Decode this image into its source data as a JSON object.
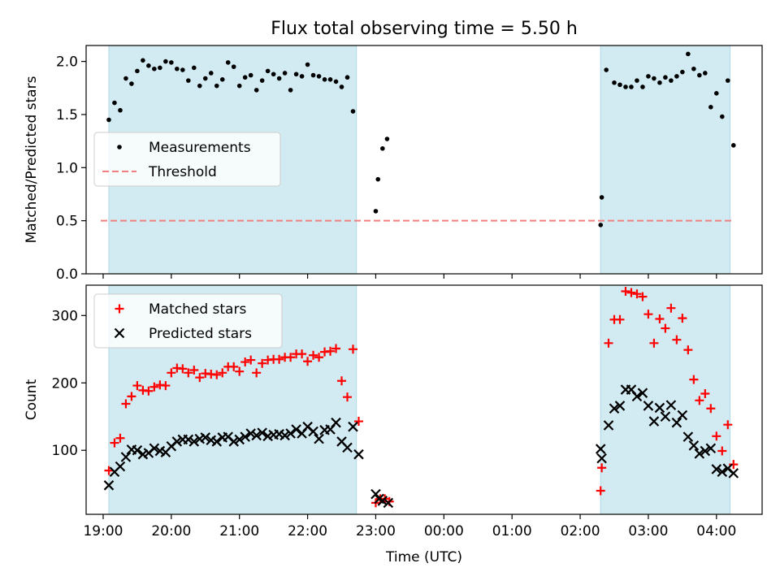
{
  "chart_data": {
    "type": "scatter",
    "title": "Flux total observing time = 5.50 h",
    "xlabel": "Time (UTC)",
    "x_ticks": [
      "19:00",
      "20:00",
      "21:00",
      "22:00",
      "23:00",
      "00:00",
      "01:00",
      "02:00",
      "03:00",
      "04:00"
    ],
    "x_range_hours": [
      18.75,
      28.67
    ],
    "colors": {
      "observing_band": "#add8e6",
      "measurements": "#000000",
      "threshold": "#f08080",
      "matched": "#ff0000",
      "predicted": "#000000"
    },
    "observing_periods": [
      {
        "start": "19:05",
        "end": "22:43"
      },
      {
        "start": "02:18",
        "end": "04:12"
      }
    ],
    "panels": [
      {
        "ylabel": "Matched/Predicted stars",
        "ylim": [
          0,
          2.15
        ],
        "y_ticks": [
          "0.0",
          "0.5",
          "1.0",
          "1.5",
          "2.0"
        ],
        "legend": {
          "position": "center-left",
          "entries": [
            "Measurements",
            "Threshold"
          ]
        },
        "threshold": 0.5,
        "series": [
          {
            "name": "Measurements",
            "marker": "dot",
            "points": [
              [
                "19:05",
                1.45
              ],
              [
                "19:10",
                1.61
              ],
              [
                "19:15",
                1.54
              ],
              [
                "19:20",
                1.84
              ],
              [
                "19:25",
                1.79
              ],
              [
                "19:30",
                1.91
              ],
              [
                "19:35",
                2.01
              ],
              [
                "19:40",
                1.96
              ],
              [
                "19:45",
                1.93
              ],
              [
                "19:50",
                1.94
              ],
              [
                "19:55",
                2.0
              ],
              [
                "20:00",
                1.99
              ],
              [
                "20:05",
                1.93
              ],
              [
                "20:10",
                1.92
              ],
              [
                "20:15",
                1.82
              ],
              [
                "20:20",
                1.94
              ],
              [
                "20:25",
                1.77
              ],
              [
                "20:30",
                1.84
              ],
              [
                "20:35",
                1.89
              ],
              [
                "20:40",
                1.77
              ],
              [
                "20:45",
                1.83
              ],
              [
                "20:50",
                1.99
              ],
              [
                "20:55",
                1.95
              ],
              [
                "21:00",
                1.77
              ],
              [
                "21:05",
                1.85
              ],
              [
                "21:10",
                1.87
              ],
              [
                "21:15",
                1.73
              ],
              [
                "21:20",
                1.82
              ],
              [
                "21:25",
                1.91
              ],
              [
                "21:30",
                1.88
              ],
              [
                "21:35",
                1.84
              ],
              [
                "21:40",
                1.89
              ],
              [
                "21:45",
                1.73
              ],
              [
                "21:50",
                1.88
              ],
              [
                "21:55",
                1.86
              ],
              [
                "22:00",
                1.97
              ],
              [
                "22:05",
                1.87
              ],
              [
                "22:10",
                1.86
              ],
              [
                "22:15",
                1.83
              ],
              [
                "22:20",
                1.83
              ],
              [
                "22:25",
                1.81
              ],
              [
                "22:30",
                1.76
              ],
              [
                "22:35",
                1.85
              ],
              [
                "22:40",
                1.53
              ],
              [
                "23:00",
                0.59
              ],
              [
                "23:02",
                0.89
              ],
              [
                "23:06",
                1.18
              ],
              [
                "23:10",
                1.27
              ],
              [
                "02:18",
                0.46
              ],
              [
                "02:19",
                0.72
              ],
              [
                "02:23",
                1.92
              ],
              [
                "02:30",
                1.8
              ],
              [
                "02:35",
                1.78
              ],
              [
                "02:40",
                1.76
              ],
              [
                "02:45",
                1.76
              ],
              [
                "02:50",
                1.82
              ],
              [
                "02:55",
                1.76
              ],
              [
                "03:00",
                1.86
              ],
              [
                "03:05",
                1.84
              ],
              [
                "03:10",
                1.8
              ],
              [
                "03:15",
                1.85
              ],
              [
                "03:20",
                1.82
              ],
              [
                "03:25",
                1.86
              ],
              [
                "03:30",
                1.9
              ],
              [
                "03:35",
                2.07
              ],
              [
                "03:40",
                1.93
              ],
              [
                "03:45",
                1.87
              ],
              [
                "03:50",
                1.89
              ],
              [
                "03:55",
                1.57
              ],
              [
                "04:00",
                1.7
              ],
              [
                "04:05",
                1.48
              ],
              [
                "04:10",
                1.82
              ],
              [
                "04:15",
                1.21
              ]
            ]
          }
        ]
      },
      {
        "ylabel": "Count",
        "ylim": [
          5,
          345
        ],
        "y_ticks": [
          "100",
          "200",
          "300"
        ],
        "legend": {
          "position": "top-left",
          "entries": [
            "Matched stars",
            "Predicted stars"
          ]
        },
        "series": [
          {
            "name": "Matched stars",
            "marker": "plus",
            "points": [
              [
                "19:05",
                70
              ],
              [
                "19:10",
                111
              ],
              [
                "19:15",
                118
              ],
              [
                "19:20",
                169
              ],
              [
                "19:25",
                180
              ],
              [
                "19:30",
                196
              ],
              [
                "19:35",
                189
              ],
              [
                "19:40",
                188
              ],
              [
                "19:45",
                194
              ],
              [
                "19:50",
                197
              ],
              [
                "19:55",
                196
              ],
              [
                "20:00",
                215
              ],
              [
                "20:05",
                222
              ],
              [
                "20:10",
                221
              ],
              [
                "20:15",
                215
              ],
              [
                "20:20",
                219
              ],
              [
                "20:25",
                208
              ],
              [
                "20:30",
                214
              ],
              [
                "20:35",
                213
              ],
              [
                "20:40",
                212
              ],
              [
                "20:45",
                215
              ],
              [
                "20:50",
                224
              ],
              [
                "20:55",
                224
              ],
              [
                "21:00",
                217
              ],
              [
                "21:05",
                231
              ],
              [
                "21:10",
                234
              ],
              [
                "21:15",
                215
              ],
              [
                "21:20",
                229
              ],
              [
                "21:25",
                234
              ],
              [
                "21:30",
                235
              ],
              [
                "21:35",
                235
              ],
              [
                "21:40",
                238
              ],
              [
                "21:45",
                238
              ],
              [
                "21:50",
                243
              ],
              [
                "21:55",
                243
              ],
              [
                "22:00",
                232
              ],
              [
                "22:05",
                241
              ],
              [
                "22:10",
                238
              ],
              [
                "22:15",
                246
              ],
              [
                "22:20",
                247
              ],
              [
                "22:25",
                251
              ],
              [
                "22:30",
                203
              ],
              [
                "22:35",
                179
              ],
              [
                "22:40",
                250
              ],
              [
                "22:45",
                143
              ],
              [
                "23:00",
                22
              ],
              [
                "23:04",
                28
              ],
              [
                "23:08",
                28
              ],
              [
                "23:12",
                24
              ],
              [
                "02:18",
                40
              ],
              [
                "02:19",
                74
              ],
              [
                "02:25",
                259
              ],
              [
                "02:30",
                294
              ],
              [
                "02:35",
                294
              ],
              [
                "02:40",
                336
              ],
              [
                "02:45",
                334
              ],
              [
                "02:50",
                332
              ],
              [
                "02:55",
                328
              ],
              [
                "03:00",
                302
              ],
              [
                "03:05",
                259
              ],
              [
                "03:10",
                295
              ],
              [
                "03:15",
                281
              ],
              [
                "03:20",
                311
              ],
              [
                "03:25",
                264
              ],
              [
                "03:30",
                296
              ],
              [
                "03:35",
                249
              ],
              [
                "03:40",
                205
              ],
              [
                "03:45",
                174
              ],
              [
                "03:50",
                184
              ],
              [
                "03:55",
                162
              ],
              [
                "04:00",
                121
              ],
              [
                "04:05",
                99
              ],
              [
                "04:10",
                138
              ],
              [
                "04:15",
                79
              ]
            ]
          },
          {
            "name": "Predicted stars",
            "marker": "x",
            "points": [
              [
                "19:05",
                48
              ],
              [
                "19:10",
                68
              ],
              [
                "19:15",
                76
              ],
              [
                "19:20",
                90
              ],
              [
                "19:25",
                101
              ],
              [
                "19:30",
                100
              ],
              [
                "19:35",
                94
              ],
              [
                "19:40",
                96
              ],
              [
                "19:45",
                103
              ],
              [
                "19:50",
                99
              ],
              [
                "19:55",
                97
              ],
              [
                "20:00",
                106
              ],
              [
                "20:05",
                113
              ],
              [
                "20:10",
                116
              ],
              [
                "20:15",
                116
              ],
              [
                "20:20",
                113
              ],
              [
                "20:25",
                117
              ],
              [
                "20:30",
                119
              ],
              [
                "20:35",
                115
              ],
              [
                "20:40",
                113
              ],
              [
                "20:45",
                119
              ],
              [
                "20:50",
                120
              ],
              [
                "20:55",
                113
              ],
              [
                "21:00",
                116
              ],
              [
                "21:05",
                120
              ],
              [
                "21:10",
                125
              ],
              [
                "21:15",
                122
              ],
              [
                "21:20",
                126
              ],
              [
                "21:25",
                121
              ],
              [
                "21:30",
                123
              ],
              [
                "21:35",
                124
              ],
              [
                "21:40",
                122
              ],
              [
                "21:45",
                125
              ],
              [
                "21:50",
                131
              ],
              [
                "21:55",
                125
              ],
              [
                "22:00",
                135
              ],
              [
                "22:05",
                128
              ],
              [
                "22:10",
                117
              ],
              [
                "22:15",
                130
              ],
              [
                "22:20",
                131
              ],
              [
                "22:25",
                141
              ],
              [
                "22:30",
                113
              ],
              [
                "22:35",
                104
              ],
              [
                "22:40",
                135
              ],
              [
                "22:45",
                94
              ],
              [
                "23:00",
                35
              ],
              [
                "23:03",
                28
              ],
              [
                "23:06",
                25
              ],
              [
                "23:11",
                22
              ],
              [
                "02:18",
                102
              ],
              [
                "02:19",
                88
              ],
              [
                "02:25",
                137
              ],
              [
                "02:30",
                162
              ],
              [
                "02:35",
                166
              ],
              [
                "02:40",
                190
              ],
              [
                "02:45",
                190
              ],
              [
                "02:50",
                180
              ],
              [
                "02:55",
                185
              ],
              [
                "03:00",
                166
              ],
              [
                "03:05",
                143
              ],
              [
                "03:10",
                163
              ],
              [
                "03:15",
                150
              ],
              [
                "03:20",
                167
              ],
              [
                "03:25",
                141
              ],
              [
                "03:30",
                152
              ],
              [
                "03:35",
                120
              ],
              [
                "03:40",
                107
              ],
              [
                "03:45",
                95
              ],
              [
                "03:50",
                99
              ],
              [
                "03:55",
                103
              ],
              [
                "04:00",
                72
              ],
              [
                "04:05",
                68
              ],
              [
                "04:10",
                73
              ],
              [
                "04:15",
                66
              ]
            ]
          }
        ]
      }
    ]
  }
}
